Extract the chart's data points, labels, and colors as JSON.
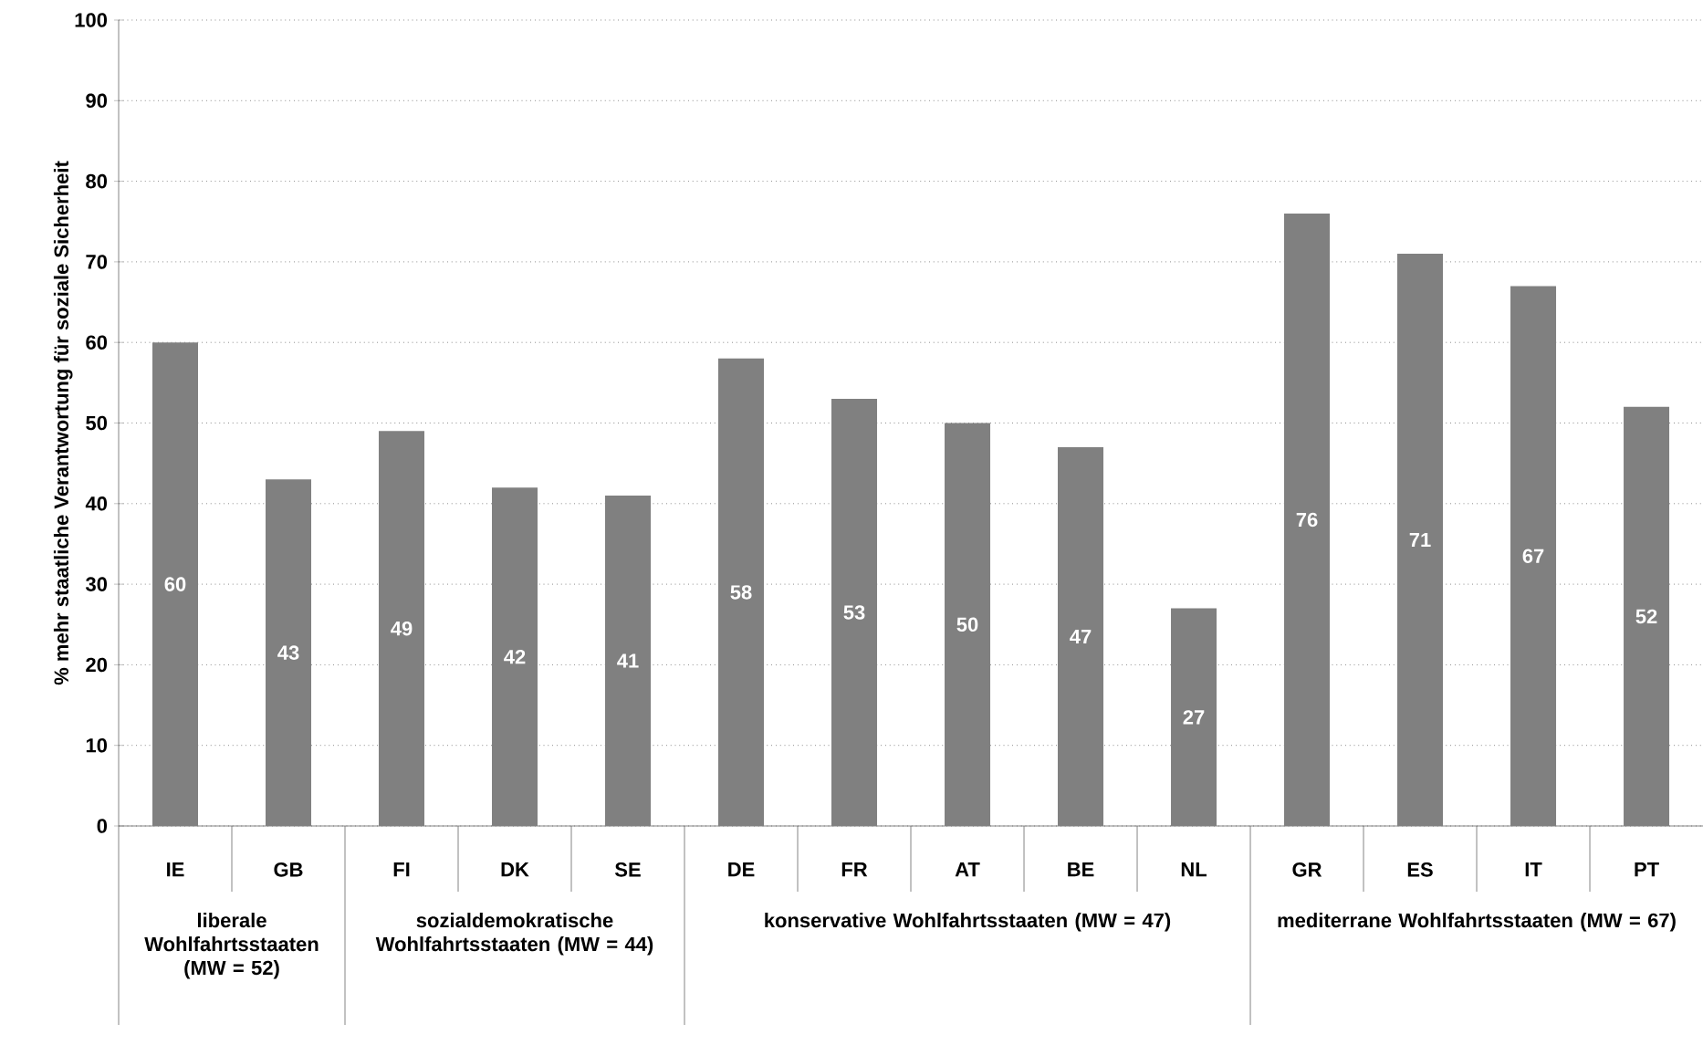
{
  "chart_data": {
    "type": "bar",
    "ylabel": "% mehr staatliche Verantwortung für soziale Sicherheit",
    "categories": [
      "IE",
      "GB",
      "FI",
      "DK",
      "SE",
      "DE",
      "FR",
      "AT",
      "BE",
      "NL",
      "GR",
      "ES",
      "IT",
      "PT"
    ],
    "values": [
      60,
      43,
      49,
      42,
      41,
      58,
      53,
      50,
      47,
      27,
      76,
      71,
      67,
      52
    ],
    "color": "#808080",
    "data_labels": true,
    "grid": "y",
    "ylim": [
      0,
      100
    ],
    "yticks": [
      0,
      10,
      20,
      30,
      40,
      50,
      60,
      70,
      80,
      90,
      100
    ],
    "annotations": [
      "liberale Wohlfahrtsstaaten (MW = 52)",
      "sozialdemokratische Wohlfahrtsstaaten (MW = 44)",
      "konservative Wohlfahrtsstaaten (MW = 47)",
      "mediterrane Wohlfahrtsstaaten (MW = 67)"
    ]
  }
}
